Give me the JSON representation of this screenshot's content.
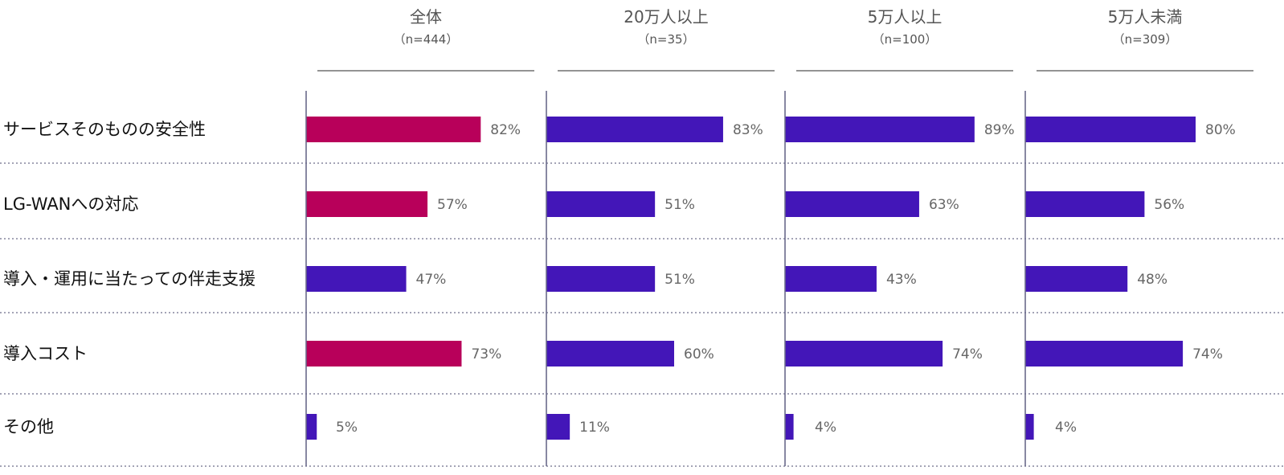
{
  "chart_data": {
    "type": "bar",
    "orientation": "horizontal",
    "xlim": [
      0,
      100
    ],
    "value_suffix": "%",
    "categories": [
      "サービスそのものの安全性",
      "LG-WANへの対応",
      "導入・運用に当たっての伴走支援",
      "導入コスト",
      "その他"
    ],
    "panels": [
      {
        "title": "全体",
        "n": "（n=444）",
        "values": [
          82,
          57,
          47,
          73,
          5
        ],
        "colors": [
          "#b8005a",
          "#b8005a",
          "#4316b8",
          "#b8005a",
          "#4316b8"
        ]
      },
      {
        "title": "20万人以上",
        "n": "（n=35）",
        "values": [
          83,
          51,
          51,
          60,
          11
        ],
        "colors": [
          "#4316b8",
          "#4316b8",
          "#4316b8",
          "#4316b8",
          "#4316b8"
        ]
      },
      {
        "title": "5万人以上",
        "n": "（n=100）",
        "values": [
          89,
          63,
          43,
          74,
          4
        ],
        "colors": [
          "#4316b8",
          "#4316b8",
          "#4316b8",
          "#4316b8",
          "#4316b8"
        ]
      },
      {
        "title": "5万人未満",
        "n": "（n=309）",
        "values": [
          80,
          56,
          48,
          74,
          4
        ],
        "colors": [
          "#4316b8",
          "#4316b8",
          "#4316b8",
          "#4316b8",
          "#4316b8"
        ]
      }
    ]
  }
}
